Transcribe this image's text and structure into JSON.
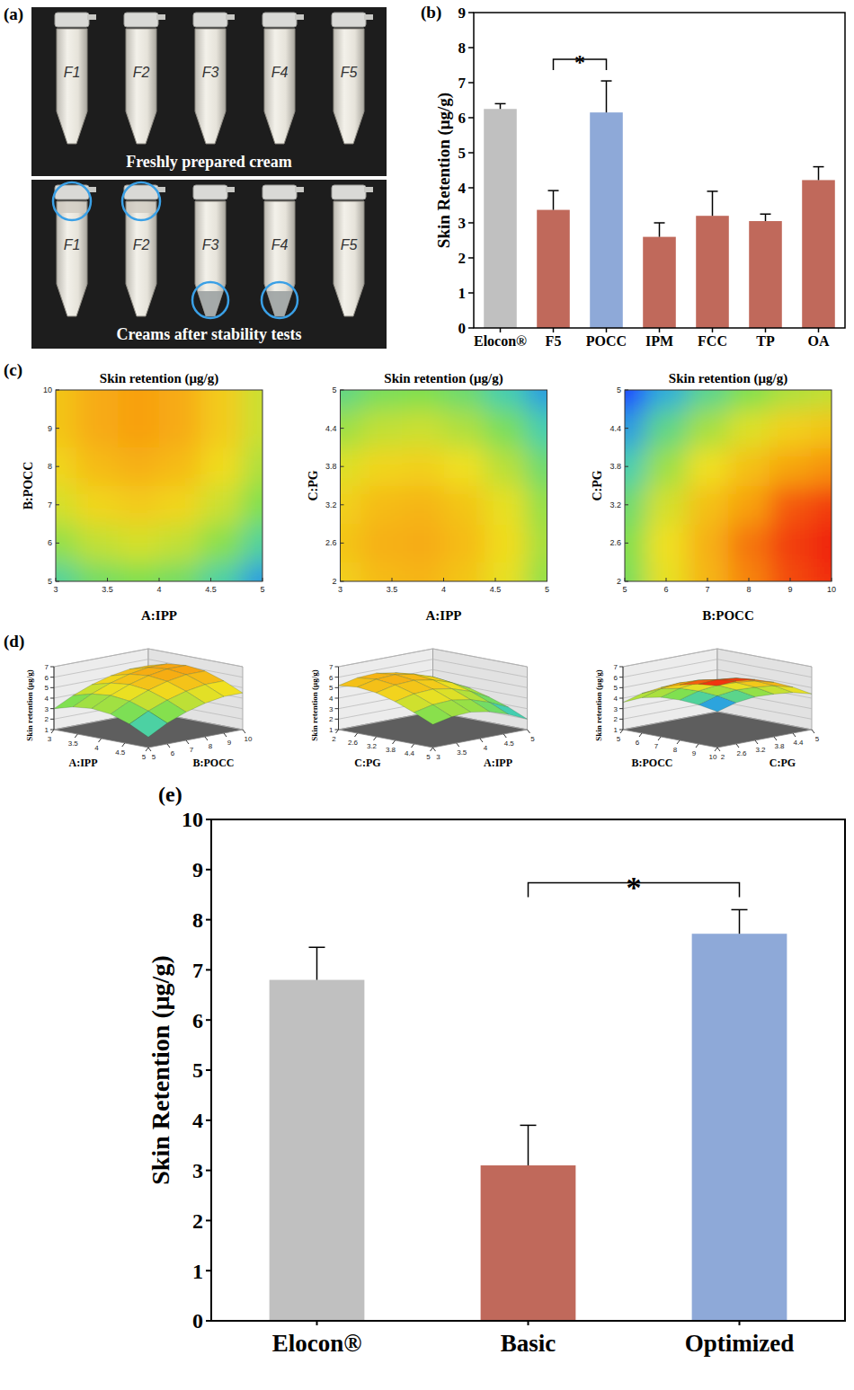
{
  "panel_labels": [
    "(a)",
    "(b)",
    "(c)",
    "(d)",
    "(e)"
  ],
  "photo": {
    "tubes": [
      "F1",
      "F2",
      "F3",
      "F4",
      "F5"
    ],
    "top_caption": "Freshly prepared cream",
    "bottom_caption": "Creams after stability tests",
    "separated_top": [
      "F1",
      "F2"
    ],
    "separated_bottom": [
      "F3",
      "F4"
    ]
  },
  "chart_data": [
    {
      "type": "bar",
      "y_label": "Skin Retention (μg/g)",
      "categories": [
        "Elocon®",
        "F5",
        "POCC",
        "IPM",
        "FCC",
        "TP",
        "OA"
      ],
      "values": [
        6.25,
        3.37,
        6.15,
        2.6,
        3.2,
        3.05,
        4.22
      ],
      "errors": [
        0.15,
        0.55,
        0.9,
        0.4,
        0.7,
        0.2,
        0.38
      ],
      "colors": [
        "#c0c0c0",
        "#c0695b",
        "#8ea9d8",
        "#c0695b",
        "#c0695b",
        "#c0695b",
        "#c0695b"
      ],
      "ylim": [
        0,
        9
      ],
      "yticks": [
        0,
        1,
        2,
        3,
        4,
        5,
        6,
        7,
        8,
        9
      ],
      "annotations": [
        {
          "text": "*",
          "between": [
            "F5",
            "POCC"
          ]
        }
      ]
    },
    {
      "type": "contour",
      "title": "Skin retention (μg/g)",
      "x_label": "A:IPP",
      "y_label": "B:POCC",
      "x": [
        3,
        3.4,
        3.8,
        4.2,
        4.6,
        5
      ],
      "y": [
        5,
        6,
        7,
        8,
        9,
        10
      ],
      "cells": [
        [
          3.0,
          3.5,
          3.7,
          3.5,
          2.9,
          2.0
        ],
        [
          3.9,
          4.4,
          4.6,
          4.4,
          3.8,
          3.0
        ],
        [
          4.6,
          5.1,
          5.3,
          5.1,
          4.5,
          3.7
        ],
        [
          5.1,
          5.6,
          5.8,
          5.6,
          5.0,
          4.2
        ],
        [
          5.4,
          5.9,
          6.1,
          5.9,
          5.3,
          4.5
        ],
        [
          5.4,
          5.9,
          6.1,
          5.9,
          5.3,
          4.5
        ]
      ],
      "xlim": [
        3,
        5
      ],
      "ylim": [
        5,
        10
      ],
      "xticks": [
        3,
        3.5,
        4,
        4.5,
        5
      ],
      "yticks": [
        5,
        6,
        7,
        8,
        9,
        10
      ]
    },
    {
      "type": "contour",
      "title": "Skin retention (μg/g)",
      "x_label": "A:IPP",
      "y_label": "C:PG",
      "x": [
        3,
        3.4,
        3.8,
        4.2,
        4.6,
        5
      ],
      "y": [
        2,
        2.6,
        3.2,
        3.8,
        4.4,
        5
      ],
      "cells": [
        [
          5.2,
          5.6,
          5.7,
          5.4,
          4.8,
          3.9
        ],
        [
          5.4,
          5.8,
          5.9,
          5.6,
          5.0,
          4.1
        ],
        [
          5.2,
          5.6,
          5.7,
          5.4,
          4.8,
          3.9
        ],
        [
          4.7,
          5.1,
          5.2,
          4.9,
          4.3,
          3.4
        ],
        [
          4.0,
          4.4,
          4.5,
          4.2,
          3.6,
          2.8
        ],
        [
          3.2,
          3.6,
          3.7,
          3.4,
          2.8,
          2.0
        ]
      ],
      "xlim": [
        3,
        5
      ],
      "ylim": [
        2,
        5
      ],
      "xticks": [
        3,
        3.5,
        4,
        4.5,
        5
      ],
      "yticks": [
        2,
        2.6,
        3.2,
        3.8,
        4.4,
        5
      ]
    },
    {
      "type": "contour",
      "title": "Skin retention (μg/g)",
      "x_label": "B:POCC",
      "y_label": "C:PG",
      "x": [
        5,
        6,
        7,
        8,
        9,
        10
      ],
      "y": [
        2,
        2.6,
        3.2,
        3.8,
        4.4,
        5
      ],
      "cells": [
        [
          3.6,
          4.8,
          5.7,
          6.3,
          6.7,
          6.9
        ],
        [
          3.7,
          4.9,
          5.8,
          6.4,
          6.8,
          7.0
        ],
        [
          3.4,
          4.6,
          5.5,
          6.1,
          6.6,
          6.8
        ],
        [
          2.8,
          4.0,
          4.9,
          5.5,
          6.0,
          6.2
        ],
        [
          2.0,
          3.2,
          4.1,
          4.7,
          5.2,
          5.4
        ],
        [
          1.0,
          2.2,
          3.1,
          3.7,
          4.2,
          4.4
        ]
      ],
      "xlim": [
        5,
        10
      ],
      "ylim": [
        2,
        5
      ],
      "xticks": [
        5,
        6,
        7,
        8,
        9,
        10
      ],
      "yticks": [
        2,
        2.6,
        3.2,
        3.8,
        4.4,
        5
      ]
    },
    {
      "type": "surface",
      "x_label": "A:IPP",
      "y_label": "B:POCC",
      "z_label": "Skin retention (μg/g)",
      "x": [
        3,
        3.4,
        3.8,
        4.2,
        4.6,
        5
      ],
      "y": [
        5,
        6,
        7,
        8,
        9,
        10
      ],
      "cells": [
        [
          3.0,
          3.5,
          3.7,
          3.5,
          2.9,
          2.0
        ],
        [
          3.9,
          4.4,
          4.6,
          4.4,
          3.8,
          3.0
        ],
        [
          4.6,
          5.1,
          5.3,
          5.1,
          4.5,
          3.7
        ],
        [
          5.1,
          5.6,
          5.8,
          5.6,
          5.0,
          4.2
        ],
        [
          5.4,
          5.9,
          6.1,
          5.9,
          5.3,
          4.5
        ],
        [
          5.4,
          5.9,
          6.1,
          5.9,
          5.3,
          4.5
        ]
      ],
      "xlim": [
        3,
        5
      ],
      "ylim": [
        5,
        10
      ],
      "zlim": [
        1,
        7
      ],
      "xticks": [
        3,
        3.5,
        4,
        4.5,
        5
      ],
      "yticks": [
        5,
        6,
        7,
        8,
        9,
        10
      ],
      "zticks": [
        1,
        2,
        3,
        4,
        5,
        6,
        7
      ]
    },
    {
      "type": "surface",
      "x_label": "C:PG",
      "y_label": "A:IPP",
      "z_label": "Skin retention (μg/g)",
      "x": [
        2,
        2.6,
        3.2,
        3.8,
        4.4,
        5
      ],
      "y": [
        3,
        3.4,
        3.8,
        4.2,
        4.6,
        5
      ],
      "cells": [
        [
          5.2,
          5.4,
          5.2,
          4.7,
          4.0,
          3.2
        ],
        [
          5.6,
          5.8,
          5.6,
          5.1,
          4.4,
          3.6
        ],
        [
          5.7,
          5.9,
          5.7,
          5.2,
          4.5,
          3.7
        ],
        [
          5.4,
          5.6,
          5.4,
          4.9,
          4.2,
          3.4
        ],
        [
          4.8,
          5.0,
          4.8,
          4.3,
          3.6,
          2.8
        ],
        [
          3.9,
          4.1,
          3.9,
          3.4,
          2.8,
          2.0
        ]
      ],
      "xlim": [
        2,
        5
      ],
      "ylim": [
        3,
        5
      ],
      "zlim": [
        1,
        7
      ],
      "xticks": [
        2,
        2.6,
        3.2,
        3.8,
        4.4,
        5
      ],
      "yticks": [
        3,
        3.5,
        4,
        4.5,
        5
      ],
      "zticks": [
        1,
        2,
        3,
        4,
        5,
        6,
        7
      ]
    },
    {
      "type": "surface",
      "x_label": "B:POCC",
      "y_label": "C:PG",
      "z_label": "Skin retention (μg/g)",
      "x": [
        5,
        6,
        7,
        8,
        9,
        10
      ],
      "y": [
        2,
        2.6,
        3.2,
        3.8,
        4.4,
        5
      ],
      "cells": [
        [
          3.6,
          4.8,
          5.7,
          6.3,
          6.7,
          6.9
        ],
        [
          3.7,
          4.9,
          5.8,
          6.4,
          6.8,
          7.0
        ],
        [
          3.4,
          4.6,
          5.5,
          6.1,
          6.6,
          6.8
        ],
        [
          2.8,
          4.0,
          4.9,
          5.5,
          6.0,
          6.2
        ],
        [
          2.0,
          3.2,
          4.1,
          4.7,
          5.2,
          5.4
        ],
        [
          1.0,
          2.2,
          3.1,
          3.7,
          4.2,
          4.4
        ]
      ],
      "xlim": [
        5,
        10
      ],
      "ylim": [
        2,
        5
      ],
      "zlim": [
        1,
        7
      ],
      "xticks": [
        5,
        6,
        7,
        8,
        9,
        10
      ],
      "yticks": [
        2,
        2.6,
        3.2,
        3.8,
        4.4,
        5
      ],
      "zticks": [
        1,
        2,
        3,
        4,
        5,
        6,
        7
      ]
    },
    {
      "type": "bar",
      "y_label": "Skin Retention (μg/g)",
      "categories": [
        "Elocon®",
        "Basic",
        "Optimized"
      ],
      "values": [
        6.8,
        3.1,
        7.72
      ],
      "errors": [
        0.65,
        0.8,
        0.48
      ],
      "colors": [
        "#c0c0c0",
        "#c0695b",
        "#8ea9d8"
      ],
      "ylim": [
        0,
        10
      ],
      "yticks": [
        0,
        1,
        2,
        3,
        4,
        5,
        6,
        7,
        8,
        9,
        10
      ],
      "annotations": [
        {
          "text": "*",
          "between": [
            "Basic",
            "Optimized"
          ]
        }
      ]
    }
  ]
}
